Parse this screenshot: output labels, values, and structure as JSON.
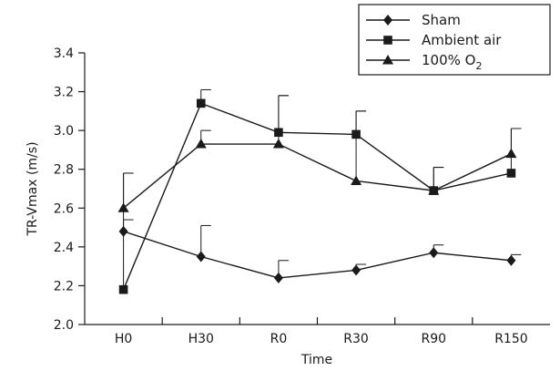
{
  "chart_data": {
    "type": "line",
    "xlabel": "Time",
    "ylabel": "TR-Vmax (m/s)",
    "categories": [
      "H0",
      "H30",
      "R0",
      "R30",
      "R90",
      "R150"
    ],
    "ylim": [
      2.0,
      3.4
    ],
    "yticks": [
      "2.0",
      "2.2",
      "2.4",
      "2.6",
      "2.8",
      "3.0",
      "3.2",
      "3.4"
    ],
    "grid": false,
    "legend_position": "top-right",
    "series": [
      {
        "name": "Sham",
        "marker": "diamond",
        "values": [
          2.48,
          2.35,
          2.24,
          2.28,
          2.37,
          2.33
        ],
        "error_upper": [
          2.54,
          2.51,
          2.33,
          2.31,
          2.41,
          2.36
        ]
      },
      {
        "name": "Ambient air",
        "marker": "square",
        "values": [
          2.18,
          3.14,
          2.99,
          2.98,
          2.69,
          2.78
        ],
        "error_upper": [
          2.78,
          3.21,
          3.18,
          3.1,
          2.81,
          3.01
        ]
      },
      {
        "name": "100% O",
        "name_subscript": "2",
        "marker": "triangle",
        "values": [
          2.6,
          2.93,
          2.93,
          2.74,
          2.69,
          2.88
        ],
        "error_upper": [
          2.78,
          3.0,
          3.18,
          3.1,
          2.81,
          3.01
        ]
      }
    ]
  }
}
